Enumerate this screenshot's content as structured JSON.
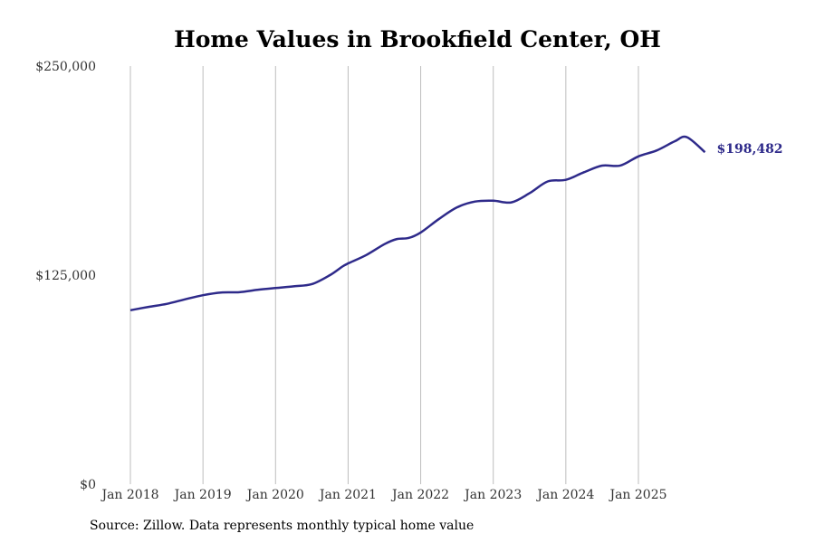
{
  "chart_data": {
    "type": "line",
    "title": "Home Values in Brookfield Center, OH",
    "xlabel": "",
    "ylabel": "",
    "ylim": [
      0,
      250000
    ],
    "yticks": [
      0,
      125000,
      250000
    ],
    "ytick_labels": [
      "$0",
      "$125,000",
      "$250,000"
    ],
    "xticks": [
      2018,
      2019,
      2020,
      2021,
      2022,
      2023,
      2024,
      2025
    ],
    "xtick_labels": [
      "Jan 2018",
      "Jan 2019",
      "Jan 2020",
      "Jan 2021",
      "Jan 2022",
      "Jan 2023",
      "Jan 2024",
      "Jan 2025"
    ],
    "xlim": [
      2018,
      2025.917
    ],
    "grid": "vertical",
    "series": [
      {
        "name": "Typical home value",
        "color": "#2e2a8a",
        "points": [
          [
            2018.0,
            104000
          ],
          [
            2018.25,
            106000
          ],
          [
            2018.5,
            107800
          ],
          [
            2018.75,
            110500
          ],
          [
            2019.0,
            113000
          ],
          [
            2019.25,
            114600
          ],
          [
            2019.5,
            114800
          ],
          [
            2019.75,
            116200
          ],
          [
            2020.0,
            117300
          ],
          [
            2020.25,
            118300
          ],
          [
            2020.5,
            119600
          ],
          [
            2020.75,
            125000
          ],
          [
            2020.917,
            130000
          ],
          [
            2021.0,
            132000
          ],
          [
            2021.25,
            137000
          ],
          [
            2021.5,
            143500
          ],
          [
            2021.667,
            146500
          ],
          [
            2021.833,
            147200
          ],
          [
            2022.0,
            150500
          ],
          [
            2022.25,
            158500
          ],
          [
            2022.5,
            165500
          ],
          [
            2022.75,
            169000
          ],
          [
            2023.0,
            169500
          ],
          [
            2023.25,
            168500
          ],
          [
            2023.5,
            174000
          ],
          [
            2023.75,
            181000
          ],
          [
            2024.0,
            182000
          ],
          [
            2024.25,
            186500
          ],
          [
            2024.5,
            190500
          ],
          [
            2024.75,
            190500
          ],
          [
            2025.0,
            196000
          ],
          [
            2025.25,
            199500
          ],
          [
            2025.5,
            205000
          ],
          [
            2025.667,
            207500
          ],
          [
            2025.917,
            198482
          ]
        ]
      }
    ],
    "end_value_label": "$198,482"
  },
  "source_text": "Source: Zillow. Data represents monthly typical home value"
}
